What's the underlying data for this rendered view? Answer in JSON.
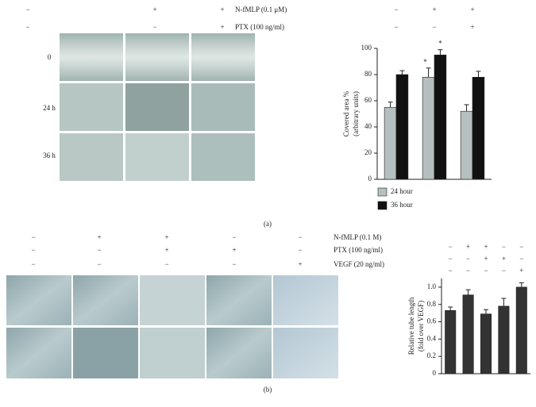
{
  "panel_a": {
    "label": "(a)",
    "treatments": [
      {
        "label": "N-fMLP (0.1 μM)",
        "signs": [
          "−",
          "+",
          "+"
        ]
      },
      {
        "label": "PTX (100 ng/ml)",
        "signs": [
          "−",
          "−",
          "+"
        ]
      }
    ],
    "time_labels": [
      "0",
      "24 h",
      "36 h"
    ]
  },
  "panel_b": {
    "label": "(b)",
    "treatments": [
      {
        "label": "N-fMLP (0.1 M)",
        "signs": [
          "−",
          "+",
          "+",
          "−",
          "−"
        ]
      },
      {
        "label": "PTX (100 ng/ml)",
        "signs": [
          "−",
          "−",
          "+",
          "+",
          "−"
        ]
      },
      {
        "label": "VEGF (20 ng/ml)",
        "signs": [
          "−",
          "−",
          "−",
          "−",
          "+"
        ]
      }
    ]
  },
  "chart_data": [
    {
      "type": "bar",
      "treatments": [
        [
          "−",
          "+",
          "+"
        ],
        [
          "−",
          "−",
          "+"
        ]
      ],
      "ylabel": [
        "Covered area %",
        "(arbitrary units)"
      ],
      "categories": [
        null,
        null,
        null
      ],
      "series": [
        {
          "name": "24 hour",
          "color": "#b5bfbf",
          "values": [
            55,
            78,
            52
          ],
          "errors": [
            4,
            7,
            5
          ],
          "annotations": [
            null,
            "*",
            null
          ]
        },
        {
          "name": "36 hour",
          "color": "#111111",
          "values": [
            80,
            95,
            78
          ],
          "errors": [
            3,
            4,
            4.5
          ],
          "annotations": [
            null,
            "*",
            null
          ]
        }
      ],
      "ylim": [
        0,
        100
      ],
      "yticks": [
        0,
        20,
        40,
        60,
        80,
        100
      ],
      "legend": "bottom"
    },
    {
      "type": "bar",
      "treatments": [
        [
          "−",
          "+",
          "+",
          "−",
          "−"
        ],
        [
          "−",
          "−",
          "+",
          "+",
          "−"
        ],
        [
          "−",
          "−",
          "−",
          "−",
          "+"
        ]
      ],
      "ylabel": [
        "Relative tube length",
        "(fold over VEGF)"
      ],
      "categories": [
        null,
        null,
        null,
        null,
        null
      ],
      "series": [
        {
          "color": "#333333",
          "values": [
            0.73,
            0.91,
            0.69,
            0.78,
            1.0
          ],
          "errors": [
            0.04,
            0.06,
            0.05,
            0.09,
            0.05
          ]
        }
      ],
      "ylim": [
        0,
        1.1
      ],
      "yticks": [
        0,
        0.2,
        0.4,
        0.6,
        0.8,
        {
          "value": 1,
          "label": "1.0"
        }
      ]
    }
  ]
}
